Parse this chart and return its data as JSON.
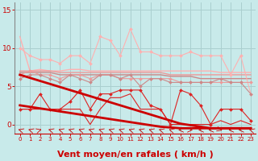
{
  "title": "",
  "xlabel": "Vent moyen/en rafales ( km/h )",
  "background_color": "#c8eaea",
  "grid_color": "#aacfcf",
  "x_values": [
    0,
    1,
    2,
    3,
    4,
    5,
    6,
    7,
    8,
    9,
    10,
    11,
    12,
    13,
    14,
    15,
    16,
    17,
    18,
    19,
    20,
    21,
    22,
    23
  ],
  "ylim": [
    -1.2,
    16
  ],
  "xlim": [
    -0.5,
    23.5
  ],
  "yticks": [
    0,
    5,
    10,
    15
  ],
  "tick_labels": [
    "0",
    "1",
    "2",
    "3",
    "4",
    "5",
    "6",
    "7",
    "8",
    "9",
    "10",
    "11",
    "12",
    "13",
    "14",
    "15",
    "16",
    "17",
    "18",
    "19",
    "20",
    "21",
    "22",
    "23"
  ],
  "xlabel_color": "#cc0000",
  "tick_color": "#cc0000",
  "xlabel_fontsize": 8,
  "series": [
    {
      "label": "light_pink_smooth",
      "y": [
        11.5,
        7.0,
        7.2,
        7.0,
        7.0,
        7.2,
        7.2,
        7.0,
        7.0,
        7.0,
        7.0,
        7.0,
        7.0,
        7.0,
        7.0,
        7.0,
        7.0,
        7.0,
        7.0,
        7.0,
        6.8,
        6.8,
        6.8,
        6.8
      ],
      "color": "#ffb0b0",
      "lw": 1.0,
      "marker": null,
      "ms": 2.5,
      "zo": 2
    },
    {
      "label": "light_pink_jagged",
      "y": [
        10.0,
        9.0,
        8.5,
        8.5,
        8.0,
        9.0,
        9.0,
        8.0,
        11.5,
        11.0,
        9.0,
        12.5,
        9.5,
        9.5,
        9.0,
        9.0,
        9.0,
        9.5,
        9.0,
        9.0,
        9.0,
        6.5,
        9.0,
        4.0
      ],
      "color": "#ffb0b0",
      "lw": 0.8,
      "marker": "D",
      "ms": 2.0,
      "zo": 3
    },
    {
      "label": "med_pink_smooth",
      "y": [
        7.0,
        7.0,
        7.0,
        7.0,
        6.8,
        6.8,
        6.8,
        6.8,
        6.8,
        6.8,
        6.8,
        6.8,
        6.8,
        6.8,
        6.8,
        6.5,
        6.5,
        6.5,
        6.5,
        6.5,
        6.5,
        6.5,
        6.5,
        6.5
      ],
      "color": "#ee9999",
      "lw": 1.0,
      "marker": null,
      "ms": 2.0,
      "zo": 2
    },
    {
      "label": "med_pink_jagged",
      "y": [
        6.5,
        7.0,
        6.5,
        6.5,
        6.0,
        6.5,
        6.5,
        6.0,
        6.5,
        6.5,
        6.0,
        6.0,
        6.0,
        6.0,
        6.0,
        6.0,
        5.5,
        5.5,
        5.5,
        5.5,
        5.5,
        5.5,
        5.5,
        5.5
      ],
      "color": "#ee9999",
      "lw": 0.8,
      "marker": "D",
      "ms": 2.0,
      "zo": 3
    },
    {
      "label": "dark_pink_smooth",
      "y": [
        6.8,
        6.8,
        6.8,
        6.8,
        6.5,
        6.5,
        6.5,
        6.5,
        6.5,
        6.5,
        6.5,
        6.5,
        6.5,
        6.5,
        6.5,
        6.3,
        6.3,
        6.3,
        6.0,
        6.0,
        6.0,
        6.0,
        6.0,
        6.0
      ],
      "color": "#cc8888",
      "lw": 1.0,
      "marker": null,
      "ms": 2.0,
      "zo": 2
    },
    {
      "label": "dark_pink_jagged",
      "y": [
        6.0,
        6.5,
        6.5,
        6.0,
        5.5,
        6.5,
        6.0,
        5.5,
        6.5,
        6.5,
        6.0,
        6.5,
        5.0,
        6.0,
        6.0,
        5.5,
        5.5,
        5.5,
        5.5,
        5.5,
        6.0,
        5.5,
        5.5,
        4.0
      ],
      "color": "#cc8888",
      "lw": 0.8,
      "marker": "D",
      "ms": 2.0,
      "zo": 3
    },
    {
      "label": "red_jagged_markers",
      "y": [
        2.0,
        2.0,
        4.0,
        2.0,
        2.0,
        3.0,
        4.5,
        2.0,
        4.0,
        4.0,
        4.5,
        4.5,
        4.5,
        2.5,
        2.0,
        0.0,
        4.5,
        4.0,
        2.5,
        0.0,
        2.0,
        2.0,
        2.0,
        0.5
      ],
      "color": "#dd2222",
      "lw": 0.8,
      "marker": "D",
      "ms": 2.0,
      "zo": 4
    },
    {
      "label": "red_smooth_bottom",
      "y": [
        2.0,
        2.0,
        2.0,
        2.0,
        2.0,
        2.0,
        2.0,
        0.0,
        2.0,
        3.5,
        3.5,
        4.0,
        2.0,
        2.0,
        2.0,
        0.0,
        0.0,
        0.0,
        0.0,
        0.0,
        0.5,
        0.0,
        0.5,
        0.0
      ],
      "color": "#dd2222",
      "lw": 0.8,
      "marker": null,
      "ms": 2.0,
      "zo": 3
    },
    {
      "label": "thick_red_upper_trend",
      "y": [
        6.5,
        6.1,
        5.7,
        5.3,
        4.9,
        4.5,
        4.1,
        3.7,
        3.3,
        2.9,
        2.5,
        2.1,
        1.7,
        1.3,
        0.9,
        0.5,
        0.1,
        -0.1,
        -0.3,
        -0.5,
        -0.5,
        -0.5,
        -0.5,
        -0.5
      ],
      "color": "#cc0000",
      "lw": 2.0,
      "marker": null,
      "ms": 2.0,
      "zo": 5
    },
    {
      "label": "thick_red_lower_trend",
      "y": [
        2.5,
        2.3,
        2.1,
        1.9,
        1.7,
        1.5,
        1.3,
        1.1,
        0.9,
        0.7,
        0.5,
        0.3,
        0.1,
        -0.1,
        -0.3,
        -0.4,
        -0.5,
        -0.5,
        -0.5,
        -0.5,
        -0.5,
        -0.5,
        -0.5,
        -0.5
      ],
      "color": "#cc0000",
      "lw": 2.0,
      "marker": null,
      "ms": 2.0,
      "zo": 5
    }
  ],
  "arrow_angles": [
    225,
    225,
    135,
    225,
    225,
    225,
    225,
    225,
    225,
    225,
    225,
    225,
    225,
    225,
    225,
    225,
    270,
    90,
    270,
    270,
    45,
    270,
    270,
    225
  ]
}
